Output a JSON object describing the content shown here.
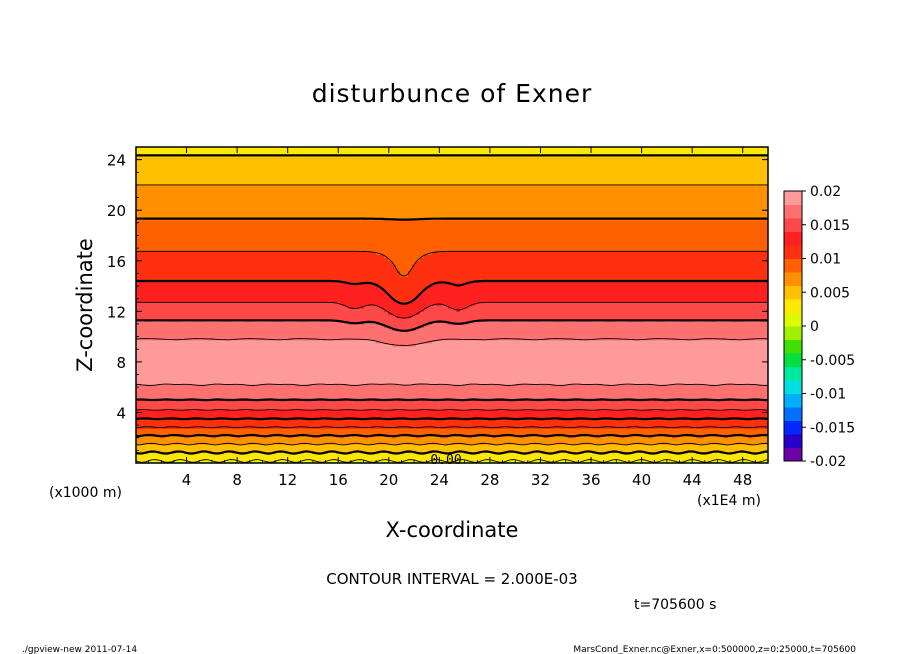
{
  "chart_data": {
    "type": "heatmap",
    "title": "disturbunce of Exner",
    "xlabel": "X-coordinate",
    "ylabel": "Z-coordinate",
    "x_unit": "(x1E4 m)",
    "y_unit": "(x1000 m)",
    "xlim": [
      0,
      50
    ],
    "ylim": [
      0,
      25
    ],
    "x_ticks": [
      4,
      8,
      12,
      16,
      20,
      24,
      28,
      32,
      36,
      40,
      44,
      48
    ],
    "y_ticks": [
      4,
      8,
      12,
      16,
      20,
      24
    ],
    "contour_label": "0.00",
    "contour_interval_text": "CONTOUR INTERVAL = 2.000E-03",
    "time_text": "t=705600 s",
    "colorbar": {
      "min": -0.02,
      "max": 0.02,
      "tick_labels": [
        "0.02",
        "0.015",
        "0.01",
        "0.005",
        "0",
        "-0.005",
        "-0.01",
        "-0.015",
        "-0.02"
      ],
      "tick_values": [
        0.02,
        0.015,
        0.01,
        0.005,
        0,
        -0.005,
        -0.01,
        -0.015,
        -0.02
      ],
      "colors": [
        "#6a00a8",
        "#2a00c8",
        "#0028ff",
        "#0070ff",
        "#00b0ff",
        "#00e0e0",
        "#00e8a0",
        "#00e040",
        "#40e000",
        "#a0f000",
        "#e0f800",
        "#ffe800",
        "#ffc000",
        "#ff9000",
        "#ff6000",
        "#ff3010",
        "#ff2020",
        "#ff4848",
        "#ff7070",
        "#ff9a9a"
      ]
    },
    "vertical_profile": {
      "z": [
        0,
        1,
        2,
        3,
        4,
        5,
        6,
        7,
        8,
        9,
        10,
        11,
        12,
        13,
        14,
        15,
        16,
        17,
        18,
        19,
        20,
        21,
        22,
        23,
        24,
        25
      ],
      "value": [
        0.0015,
        0.0045,
        0.0075,
        0.0105,
        0.0135,
        0.016,
        0.0178,
        0.0188,
        0.0192,
        0.0188,
        0.0178,
        0.0164,
        0.015,
        0.0136,
        0.0124,
        0.0114,
        0.0106,
        0.0098,
        0.009,
        0.0082,
        0.0076,
        0.0068,
        0.006,
        0.005,
        0.0042,
        0.0036
      ]
    }
  },
  "footer": {
    "left": "./gpview-new  2011-07-14",
    "right": "MarsCond_Exner.nc@Exner,x=0:500000,z=0:25000,t=705600"
  }
}
